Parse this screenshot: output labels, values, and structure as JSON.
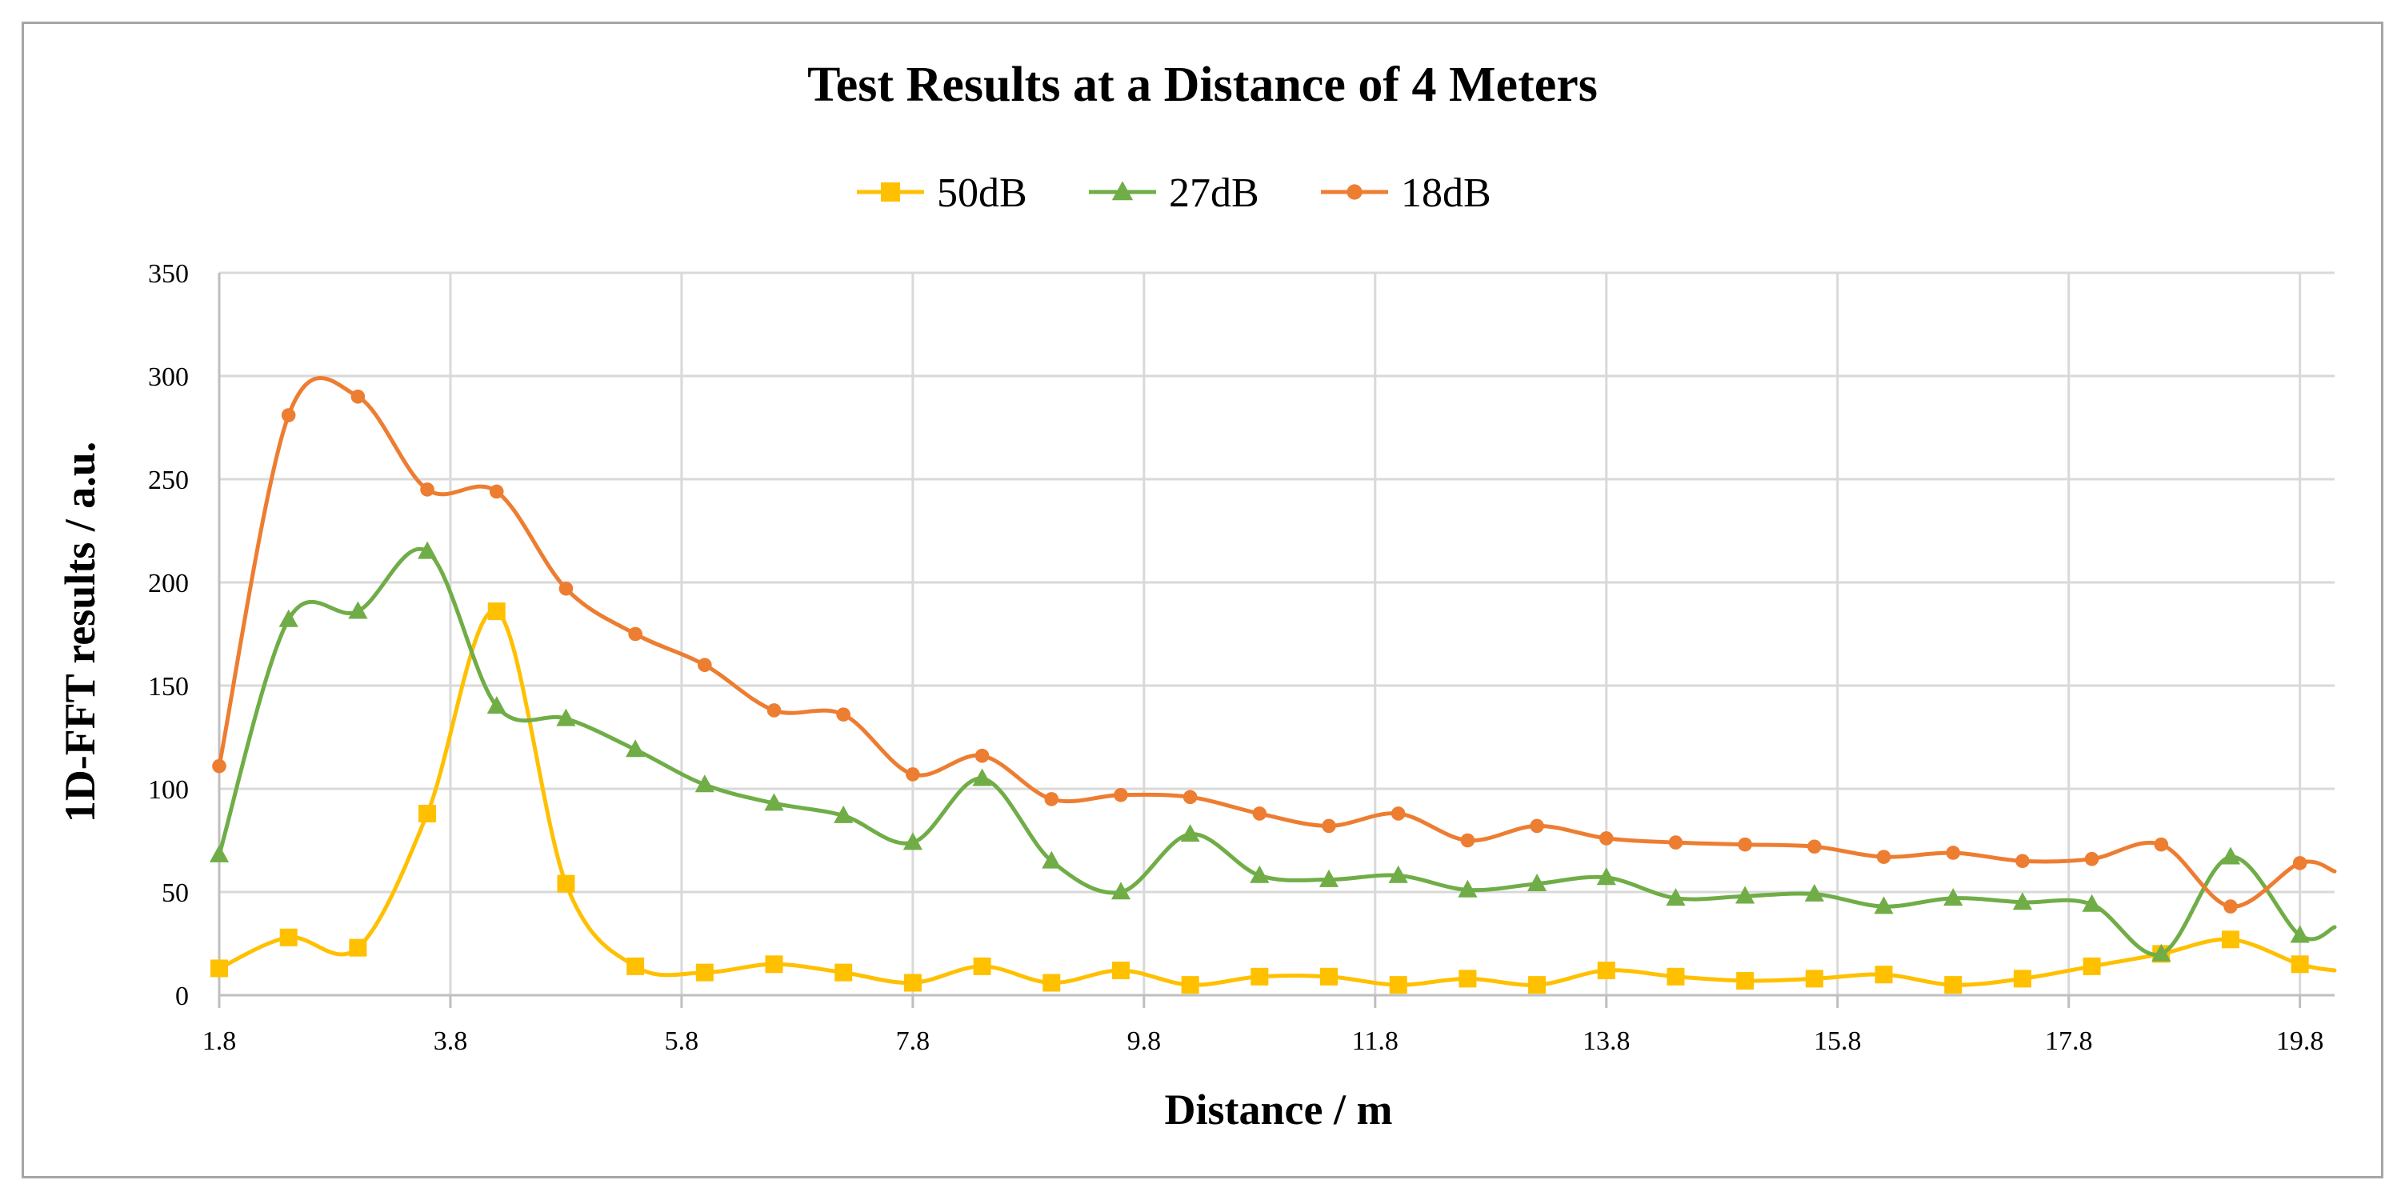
{
  "chart_data": {
    "type": "line",
    "title": "Test Results at a Distance of 4 Meters",
    "xlabel": "Distance / m",
    "ylabel": "1D-FFT results / a.u.",
    "xlim": [
      1.8,
      20.1
    ],
    "ylim": [
      0,
      350
    ],
    "xticks": [
      1.8,
      3.8,
      5.8,
      7.8,
      9.8,
      11.8,
      13.8,
      15.8,
      17.8,
      19.8
    ],
    "xtick_labels": [
      "1.8",
      "3.8",
      "5.8",
      "7.8",
      "9.8",
      "11.8",
      "13.8",
      "15.8",
      "17.8",
      "19.8"
    ],
    "yticks": [
      0,
      50,
      100,
      150,
      200,
      250,
      300,
      350
    ],
    "ytick_labels": [
      "0",
      "50",
      "100",
      "150",
      "200",
      "250",
      "300",
      "350"
    ],
    "grid": true,
    "legend_position": "top-center",
    "x": [
      1.8,
      2.4,
      3.0,
      3.6,
      4.2,
      4.8,
      5.4,
      6.0,
      6.6,
      7.2,
      7.8,
      8.4,
      9.0,
      9.6,
      10.2,
      10.8,
      11.4,
      12.0,
      12.6,
      13.2,
      13.8,
      14.4,
      15.0,
      15.6,
      16.2,
      16.8,
      17.4,
      18.0,
      18.6,
      19.2,
      19.8,
      20.1
    ],
    "series": [
      {
        "name": "50dB",
        "color": "#ffc000",
        "marker": "square",
        "values": [
          13,
          28,
          23,
          88,
          186,
          54,
          14,
          11,
          15,
          11,
          6,
          14,
          6,
          12,
          5,
          9,
          9,
          5,
          8,
          5,
          12,
          9,
          7,
          8,
          10,
          5,
          8,
          14,
          20,
          27,
          15,
          12
        ]
      },
      {
        "name": "27dB",
        "color": "#70ad47",
        "marker": "triangle",
        "values": [
          68,
          182,
          186,
          215,
          140,
          134,
          119,
          102,
          93,
          87,
          74,
          105,
          65,
          50,
          78,
          58,
          56,
          58,
          51,
          54,
          57,
          47,
          48,
          49,
          43,
          47,
          45,
          44,
          20,
          67,
          29,
          33
        ]
      },
      {
        "name": "18dB",
        "color": "#ed7d31",
        "marker": "circle",
        "values": [
          111,
          281,
          290,
          245,
          244,
          197,
          175,
          160,
          138,
          136,
          107,
          116,
          95,
          97,
          96,
          88,
          82,
          88,
          75,
          82,
          76,
          74,
          73,
          72,
          67,
          69,
          65,
          66,
          73,
          43,
          64,
          60
        ]
      }
    ]
  }
}
